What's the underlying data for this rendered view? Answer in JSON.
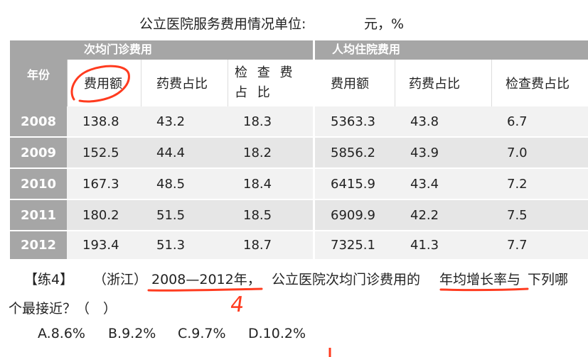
{
  "title": {
    "main": "公立医院服务费用情况单位:",
    "unit": "元，%"
  },
  "table": {
    "year_header": "年份",
    "group1": "次均门诊费用",
    "group2": "人均住院费用",
    "sub_headers": [
      "费用额",
      "药费占比",
      "检 查 费 占 比",
      "费用额",
      "药费占比",
      "检查费占比"
    ],
    "rows": [
      {
        "year": "2008",
        "cells": [
          "138.8",
          "43.2",
          "18.3",
          "5363.3",
          "43.8",
          "6.7"
        ]
      },
      {
        "year": "2009",
        "cells": [
          "152.5",
          "44.4",
          "18.2",
          "5856.2",
          "43.9",
          "7.0"
        ]
      },
      {
        "year": "2010",
        "cells": [
          "167.3",
          "48.5",
          "18.4",
          "6415.9",
          "43.4",
          "7.2"
        ]
      },
      {
        "year": "2011",
        "cells": [
          "180.2",
          "51.5",
          "18.5",
          "6909.9",
          "42.2",
          "7.5"
        ]
      },
      {
        "year": "2012",
        "cells": [
          "193.4",
          "51.3",
          "18.7",
          "7325.1",
          "41.3",
          "7.7"
        ]
      }
    ]
  },
  "question": {
    "tag": "【练4】",
    "source": "（浙江）",
    "range": "2008—2012年，",
    "text_a": "公立医院次均门诊费用的",
    "highlight": "年均增长率与",
    "text_b": "下列哪",
    "line2": "个最接近？（　）",
    "options": [
      "A.8.6%",
      "B.9.2%",
      "C.9.7%",
      "D.10.2%"
    ]
  },
  "annotations": {
    "handwritten_number": "4",
    "ink_color": "#ff3b1f"
  }
}
